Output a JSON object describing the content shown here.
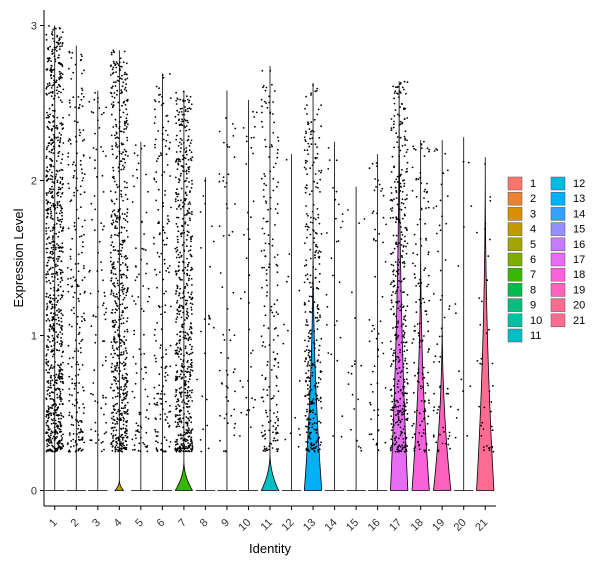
{
  "chart_data": {
    "type": "violin",
    "xlabel": "Identity",
    "ylabel": "Expression Level",
    "ylim": [
      -0.1,
      3.1
    ],
    "yticks": [
      0,
      1,
      2,
      3
    ],
    "grid": false,
    "legend_position": "right",
    "categories": [
      "1",
      "2",
      "3",
      "4",
      "5",
      "6",
      "7",
      "8",
      "9",
      "10",
      "11",
      "12",
      "13",
      "14",
      "15",
      "16",
      "17",
      "18",
      "19",
      "20",
      "21"
    ],
    "colors": [
      "#F8766D",
      "#EA8331",
      "#D89000",
      "#C09B00",
      "#A3A500",
      "#7CAE00",
      "#39B600",
      "#00BB4E",
      "#00BF7D",
      "#00C1A3",
      "#00BFC4",
      "#00BAE0",
      "#00B0F6",
      "#35A2FF",
      "#9590FF",
      "#C77CFF",
      "#E76BF3",
      "#FA62DB",
      "#FF62BC",
      "#FF6C91",
      "#FF6C91"
    ],
    "series": [
      {
        "cluster": "1",
        "max": 3.0,
        "dots": 900,
        "violin_width": 0.0,
        "violin_top": 0.0
      },
      {
        "cluster": "2",
        "max": 2.87,
        "dots": 240,
        "violin_width": 0.0,
        "violin_top": 0.0
      },
      {
        "cluster": "3",
        "max": 2.58,
        "dots": 90,
        "violin_width": 0.0,
        "violin_top": 0.0
      },
      {
        "cluster": "4",
        "max": 2.84,
        "dots": 650,
        "violin_width": 0.45,
        "violin_top": 0.07
      },
      {
        "cluster": "5",
        "max": 2.25,
        "dots": 90,
        "violin_width": 0.0,
        "violin_top": 0.0
      },
      {
        "cluster": "6",
        "max": 2.69,
        "dots": 180,
        "violin_width": 0.0,
        "violin_top": 0.0
      },
      {
        "cluster": "7",
        "max": 2.58,
        "dots": 650,
        "violin_width": 0.9,
        "violin_top": 0.2
      },
      {
        "cluster": "8",
        "max": 2.02,
        "dots": 25,
        "violin_width": 0.0,
        "violin_top": 0.0
      },
      {
        "cluster": "9",
        "max": 2.58,
        "dots": 60,
        "violin_width": 0.0,
        "violin_top": 0.0
      },
      {
        "cluster": "10",
        "max": 2.52,
        "dots": 40,
        "violin_width": 0.0,
        "violin_top": 0.0
      },
      {
        "cluster": "11",
        "max": 2.74,
        "dots": 190,
        "violin_width": 0.9,
        "violin_top": 0.25
      },
      {
        "cluster": "12",
        "max": 2.17,
        "dots": 15,
        "violin_width": 0.0,
        "violin_top": 0.0
      },
      {
        "cluster": "13",
        "max": 2.63,
        "dots": 330,
        "violin_width": 0.9,
        "violin_top": 1.67
      },
      {
        "cluster": "14",
        "max": 2.25,
        "dots": 30,
        "violin_width": 0.0,
        "violin_top": 0.0
      },
      {
        "cluster": "15",
        "max": 1.96,
        "dots": 20,
        "violin_width": 0.0,
        "violin_top": 0.0
      },
      {
        "cluster": "16",
        "max": 2.17,
        "dots": 60,
        "violin_width": 0.0,
        "violin_top": 0.0
      },
      {
        "cluster": "17",
        "max": 2.64,
        "dots": 420,
        "violin_width": 0.9,
        "violin_top": 2.62
      },
      {
        "cluster": "18",
        "max": 2.26,
        "dots": 150,
        "violin_width": 0.9,
        "violin_top": 1.65
      },
      {
        "cluster": "19",
        "max": 2.26,
        "dots": 60,
        "violin_width": 0.9,
        "violin_top": 1.15
      },
      {
        "cluster": "20",
        "max": 2.28,
        "dots": 15,
        "violin_width": 0.0,
        "violin_top": 0.0
      },
      {
        "cluster": "21",
        "max": 2.15,
        "dots": 40,
        "violin_width": 0.9,
        "violin_top": 2.15
      }
    ]
  }
}
